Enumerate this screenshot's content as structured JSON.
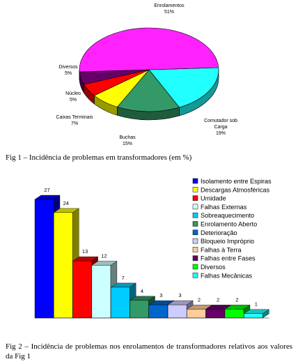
{
  "chart_data": [
    {
      "type": "pie",
      "style": "3d",
      "categories": [
        "Enrolamentos",
        "Comutador sob Carga",
        "Buchas",
        "Caixas Terminais",
        "Núcleo",
        "Diversos"
      ],
      "values": [
        51,
        19,
        15,
        7,
        5,
        5
      ],
      "value_labels": [
        "51%",
        "19%",
        "15%",
        "7%",
        "5%",
        "5%"
      ],
      "colors": [
        "#ff22ff",
        "#22ffff",
        "#339966",
        "#ffff00",
        "#ff0000",
        "#660066"
      ]
    },
    {
      "type": "bar",
      "style": "3d",
      "categories": [
        "Isolamento entre Espiras",
        "Descargas Atmosféricas",
        "Umidade",
        "Falhas Externas",
        "Sobreaquecimento",
        "Enrolamento Aberto",
        "Deterioração",
        "Bloqueio Impróprio",
        "Falhas à Terra",
        "Falhas entre Fases",
        "Diversos",
        "Falhas Mecânicas"
      ],
      "values": [
        27,
        24,
        13,
        12,
        7,
        4,
        3,
        3,
        2,
        2,
        2,
        1
      ],
      "colors": [
        "#0000ff",
        "#ffff00",
        "#ff0000",
        "#ccffff",
        "#00ccff",
        "#339966",
        "#0066cc",
        "#ccccff",
        "#ffcc99",
        "#660066",
        "#00ff00",
        "#22ffff"
      ],
      "legend_position": "right",
      "ylim": [
        0,
        27
      ]
    }
  ],
  "captions": {
    "fig1": "Fig 1 – Incidência de problemas em transformadores (em %)",
    "fig2": "Fig 2 – Incidência de problemas nos enrolamentos de transformadores relativos aos valores da Fig 1"
  }
}
